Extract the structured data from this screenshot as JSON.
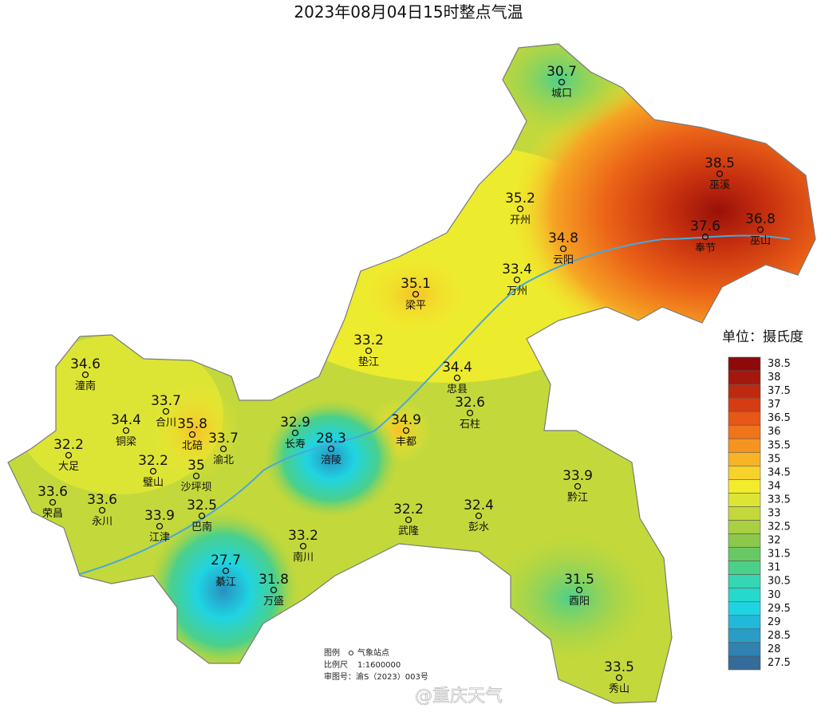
{
  "title": "2023年08月04日15时整点气温",
  "stations": [
    {
      "name": "城口",
      "temp": 30.7
    },
    {
      "name": "巫溪",
      "temp": 38.5
    },
    {
      "name": "开州",
      "temp": 35.2
    },
    {
      "name": "巫山",
      "temp": 36.8
    },
    {
      "name": "奉节",
      "temp": 37.6
    },
    {
      "name": "云阳",
      "temp": 34.8
    },
    {
      "name": "万州",
      "temp": 33.4
    },
    {
      "name": "梁平",
      "temp": 35.1
    },
    {
      "name": "垫江",
      "temp": 33.2
    },
    {
      "name": "忠县",
      "temp": 34.4
    },
    {
      "name": "潼南",
      "temp": 34.6
    },
    {
      "name": "合川",
      "temp": 33.7
    },
    {
      "name": "石柱",
      "temp": 32.6
    },
    {
      "name": "铜梁",
      "temp": 34.4
    },
    {
      "name": "北碚",
      "temp": 35.8
    },
    {
      "name": "渝北",
      "temp": 33.7
    },
    {
      "name": "长寿",
      "temp": 32.9
    },
    {
      "name": "涪陵",
      "temp": 28.3
    },
    {
      "name": "丰都",
      "temp": 34.9
    },
    {
      "name": "大足",
      "temp": 32.2
    },
    {
      "name": "璧山",
      "temp": 32.2
    },
    {
      "name": "沙坪坝",
      "temp": 35
    },
    {
      "name": "荣昌",
      "temp": 33.6
    },
    {
      "name": "永川",
      "temp": 33.6
    },
    {
      "name": "江津",
      "temp": 33.9
    },
    {
      "name": "巴南",
      "temp": 32.5
    },
    {
      "name": "黔江",
      "temp": 33.9
    },
    {
      "name": "武隆",
      "temp": 32.2
    },
    {
      "name": "彭水",
      "temp": 32.4
    },
    {
      "name": "南川",
      "temp": 33.2
    },
    {
      "name": "綦江",
      "temp": 27.7
    },
    {
      "name": "万盛",
      "temp": 31.8
    },
    {
      "name": "酉阳",
      "temp": 31.5
    },
    {
      "name": "秀山",
      "temp": 33.5
    }
  ],
  "legend": {
    "title": "单位：摄氏度",
    "items": [
      {
        "value": 38.5,
        "color": "#8e0a0a"
      },
      {
        "value": 38,
        "color": "#a3170e"
      },
      {
        "value": 37.5,
        "color": "#bd2a10"
      },
      {
        "value": 37,
        "color": "#d63c12"
      },
      {
        "value": 36.5,
        "color": "#e85716"
      },
      {
        "value": 36,
        "color": "#f0741a"
      },
      {
        "value": 35.5,
        "color": "#f5951f"
      },
      {
        "value": 35,
        "color": "#f8b326"
      },
      {
        "value": 34.5,
        "color": "#f6d22b"
      },
      {
        "value": 34,
        "color": "#f2ec2c"
      },
      {
        "value": 33.5,
        "color": "#dde534"
      },
      {
        "value": 33,
        "color": "#c3d93b"
      },
      {
        "value": 32.5,
        "color": "#a8d042"
      },
      {
        "value": 32,
        "color": "#8bc84c"
      },
      {
        "value": 31.5,
        "color": "#68c964"
      },
      {
        "value": 31,
        "color": "#4bd08a"
      },
      {
        "value": 30.5,
        "color": "#36d6b2"
      },
      {
        "value": 30,
        "color": "#25dacd"
      },
      {
        "value": 29.5,
        "color": "#1fd4e2"
      },
      {
        "value": 29,
        "color": "#21b9d9"
      },
      {
        "value": 28.5,
        "color": "#2a9dc6"
      },
      {
        "value": 28,
        "color": "#3082b0"
      },
      {
        "value": 27.5,
        "color": "#346b98"
      }
    ]
  },
  "notes": {
    "legend_label": "图例",
    "station_label": "气象站点",
    "scale_label": "比例尺",
    "scale": "1:1600000",
    "approval": "审图号：渝S（2023）003号"
  },
  "watermark": "@重庆天气"
}
